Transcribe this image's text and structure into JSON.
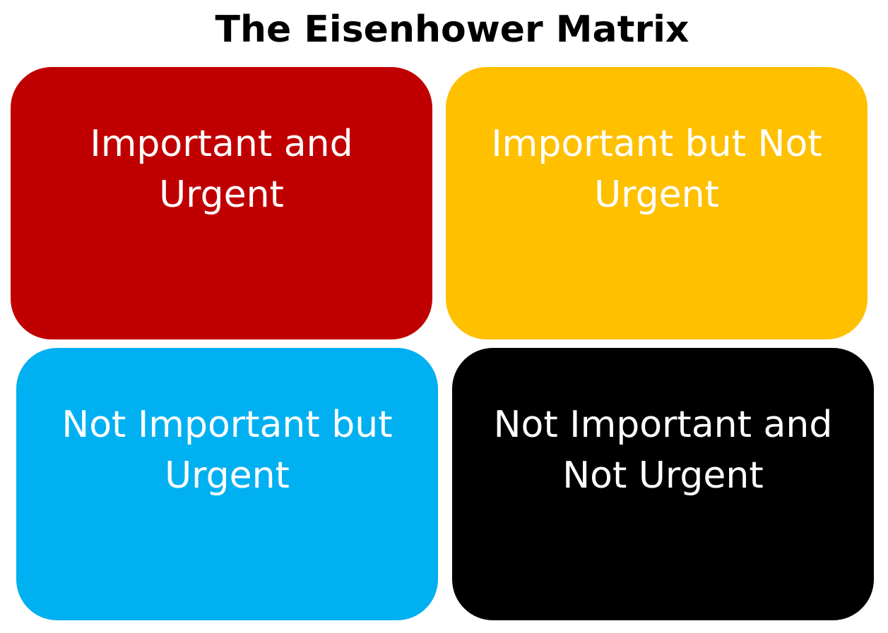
{
  "title": "The Eisenhower Matrix",
  "quadrants": [
    {
      "label": "Important and\nUrgent",
      "color": "#c00000"
    },
    {
      "label": "Important but Not\nUrgent",
      "color": "#ffc000"
    },
    {
      "label": "Not Important but\nUrgent",
      "color": "#00b0f0"
    },
    {
      "label": "Not Important and\nNot Urgent",
      "color": "#000000"
    }
  ]
}
